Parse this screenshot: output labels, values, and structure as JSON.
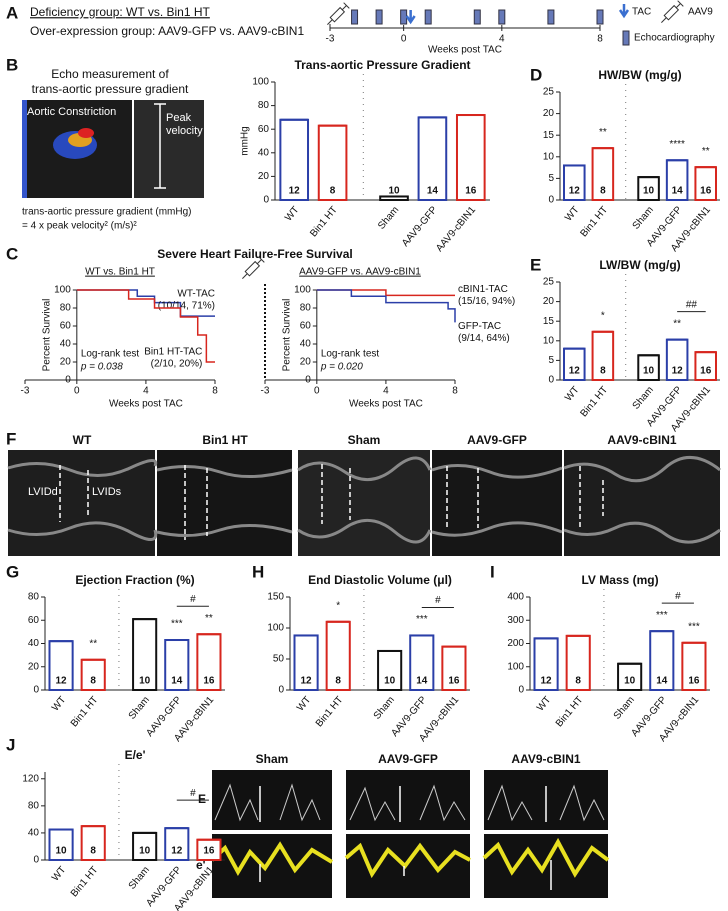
{
  "panels": {
    "a": {
      "letter": "A",
      "line1": "Deficiency group: WT vs. Bin1 HT",
      "line2": "Over-expression group: AAV9-GFP vs. AAV9-cBIN1"
    },
    "b": {
      "letter": "B",
      "echo_title1": "Echo measurement of",
      "echo_title2": "trans-aortic pressure gradient",
      "aortic": "Aortic Constriction",
      "peak1": "Peak",
      "peak2": "velocity",
      "formula1": "trans-aortic pressure gradient (mmHg)",
      "formula2": "= 4 x peak velocity² (m/s)²"
    },
    "c": {
      "letter": "C",
      "title": "Severe Heart Failure-Free Survival"
    },
    "d": {
      "letter": "D"
    },
    "e": {
      "letter": "E"
    },
    "f": {
      "letter": "F",
      "groups": [
        "WT",
        "Bin1 HT",
        "Sham",
        "AAV9-GFP",
        "AAV9-cBIN1"
      ],
      "lvidd": "LVIDd",
      "lvids": "LVIDs"
    },
    "g": {
      "letter": "G"
    },
    "h": {
      "letter": "H"
    },
    "i": {
      "letter": "I"
    },
    "j": {
      "letter": "J",
      "groups": [
        "Sham",
        "AAV9-GFP",
        "AAV9-cBIN1"
      ],
      "row1": "E",
      "row2": "e'"
    }
  },
  "chart_data": [
    {
      "type": "bar",
      "title": "Trans-aortic Pressure Gradient",
      "ylabel": "mmHg",
      "categories": [
        "WT",
        "Bin1 HT",
        "Sham",
        "AAV9-GFP",
        "AAV9-cBIN1"
      ],
      "values": [
        68,
        63,
        3,
        70,
        72
      ],
      "colors": [
        "#2b3fa8",
        "#d7261e",
        "#111111",
        "#2b3fa8",
        "#d7261e"
      ],
      "n": [
        12,
        8,
        10,
        14,
        16
      ],
      "significance": [
        null,
        null,
        null,
        null,
        null
      ],
      "ylim": [
        0,
        100
      ],
      "yticks": [
        0,
        20,
        40,
        60,
        80,
        100
      ]
    },
    {
      "type": "line",
      "step": true,
      "subtitle": "WT vs. Bin1 HT",
      "xlim": [
        -3,
        8
      ],
      "xticks": [
        -3,
        0,
        4,
        8
      ],
      "ylim": [
        0,
        100
      ],
      "yticks": [
        0,
        20,
        40,
        60,
        80,
        100
      ],
      "xlabel": "Weeks post TAC",
      "ylabel": "Percent Survival",
      "test": "Log-rank test",
      "p": "p = 0.038",
      "series": [
        {
          "name": "WT-TAC",
          "summary": "(10/14, 71%)",
          "color": "#2b3fa8",
          "x": [
            0,
            3.5,
            4.5,
            6,
            8
          ],
          "values": [
            100,
            93,
            86,
            71,
            71
          ]
        },
        {
          "name": "Bin1 HT-TAC",
          "summary": "(2/10, 20%)",
          "color": "#d7261e",
          "x": [
            0,
            3,
            4.5,
            6,
            7,
            7.5,
            8
          ],
          "values": [
            100,
            90,
            80,
            70,
            50,
            20,
            20
          ]
        }
      ]
    },
    {
      "type": "line",
      "step": true,
      "subtitle": "AAV9-GFP vs. AAV9-cBIN1",
      "injection_x": -3,
      "xlim": [
        -3,
        8
      ],
      "xticks": [
        -3,
        0,
        4,
        8
      ],
      "ylim": [
        0,
        100
      ],
      "yticks": [
        0,
        20,
        40,
        60,
        80,
        100
      ],
      "xlabel": "Weeks post TAC",
      "ylabel": "Percent Survival",
      "test": "Log-rank test",
      "p": "p = 0.020",
      "series": [
        {
          "name": "cBIN1-TAC",
          "summary": "(15/16, 94%)",
          "color": "#d7261e",
          "x": [
            0,
            4,
            8
          ],
          "values": [
            100,
            94,
            94
          ]
        },
        {
          "name": "GFP-TAC",
          "summary": "(9/14, 64%)",
          "color": "#2b3fa8",
          "x": [
            0,
            2,
            4,
            7.6,
            8
          ],
          "values": [
            100,
            93,
            86,
            79,
            64
          ]
        }
      ]
    },
    {
      "type": "bar",
      "title": "HW/BW (mg/g)",
      "categories": [
        "WT",
        "Bin1 HT",
        "Sham",
        "AAV9-GFP",
        "AAV9-cBIN1"
      ],
      "values": [
        8,
        12,
        5.3,
        9.2,
        7.6
      ],
      "colors": [
        "#2b3fa8",
        "#d7261e",
        "#111111",
        "#2b3fa8",
        "#d7261e"
      ],
      "n": [
        12,
        8,
        10,
        14,
        16
      ],
      "significance": [
        null,
        "**",
        null,
        "****",
        "**"
      ],
      "ylim": [
        0,
        25
      ],
      "yticks": [
        0,
        5,
        10,
        15,
        20,
        25
      ]
    },
    {
      "type": "bar",
      "title": "LW/BW (mg/g)",
      "categories": [
        "WT",
        "Bin1 HT",
        "Sham",
        "AAV9-GFP",
        "AAV9-cBIN1"
      ],
      "values": [
        8,
        12.3,
        6.3,
        10.3,
        7.1
      ],
      "colors": [
        "#2b3fa8",
        "#d7261e",
        "#111111",
        "#2b3fa8",
        "#d7261e"
      ],
      "n": [
        12,
        8,
        10,
        12,
        16
      ],
      "significance": [
        null,
        "*",
        null,
        "**",
        null
      ],
      "comparison": "##",
      "ylim": [
        0,
        25
      ],
      "yticks": [
        0,
        5,
        10,
        15,
        20,
        25
      ]
    },
    {
      "type": "bar",
      "title": "Ejection Fraction (%)",
      "categories": [
        "WT",
        "Bin1 HT",
        "Sham",
        "AAV9-GFP",
        "AAV9-cBIN1"
      ],
      "values": [
        42,
        26,
        61,
        43,
        48
      ],
      "colors": [
        "#2b3fa8",
        "#d7261e",
        "#111111",
        "#2b3fa8",
        "#d7261e"
      ],
      "n": [
        12,
        8,
        10,
        14,
        16
      ],
      "significance": [
        null,
        "**",
        null,
        "***",
        "**"
      ],
      "comparison": "#",
      "ylim": [
        0,
        80
      ],
      "yticks": [
        0,
        20,
        40,
        60,
        80
      ]
    },
    {
      "type": "bar",
      "title": "End Diastolic Volume (μl)",
      "categories": [
        "WT",
        "Bin1 HT",
        "Sham",
        "AAV9-GFP",
        "AAV9-cBIN1"
      ],
      "values": [
        88,
        110,
        63,
        88,
        70
      ],
      "colors": [
        "#2b3fa8",
        "#d7261e",
        "#111111",
        "#2b3fa8",
        "#d7261e"
      ],
      "n": [
        12,
        8,
        10,
        14,
        16
      ],
      "significance": [
        null,
        "*",
        null,
        "***",
        null
      ],
      "comparison": "#",
      "ylim": [
        0,
        150
      ],
      "yticks": [
        0,
        50,
        100,
        150
      ]
    },
    {
      "type": "bar",
      "title": "LV Mass (mg)",
      "categories": [
        "WT",
        "Bin1 HT",
        "Sham",
        "AAV9-GFP",
        "AAV9-cBIN1"
      ],
      "values": [
        222,
        233,
        113,
        253,
        203
      ],
      "colors": [
        "#2b3fa8",
        "#d7261e",
        "#111111",
        "#2b3fa8",
        "#d7261e"
      ],
      "n": [
        12,
        8,
        10,
        14,
        16
      ],
      "significance": [
        null,
        null,
        null,
        "***",
        "***"
      ],
      "comparison": "#",
      "ylim": [
        0,
        400
      ],
      "yticks": [
        0,
        100,
        200,
        300,
        400
      ]
    },
    {
      "type": "bar",
      "title": "E/e'",
      "categories": [
        "WT",
        "Bin1 HT",
        "Sham",
        "AAV9-GFP",
        "AAV9-cBIN1"
      ],
      "values": [
        45,
        50,
        40,
        47,
        30
      ],
      "colors": [
        "#2b3fa8",
        "#d7261e",
        "#111111",
        "#2b3fa8",
        "#d7261e"
      ],
      "n": [
        10,
        8,
        10,
        12,
        16
      ],
      "significance": [
        null,
        null,
        null,
        null,
        null
      ],
      "comparison": "#",
      "ylim": [
        0,
        130
      ],
      "yticks": [
        0,
        40,
        80,
        120
      ]
    },
    {
      "type": "timeline",
      "xlim": [
        -3,
        8
      ],
      "xticks": [
        -3,
        0,
        4,
        8
      ],
      "xlabel": "Weeks post TAC",
      "echo_weeks": [
        -2,
        -1,
        0,
        1,
        3,
        4,
        6,
        8
      ],
      "tac_week": 0,
      "aav9_week": -3,
      "legend": {
        "tac": "TAC",
        "aav9": "AAV9",
        "echo": "Echocardiography"
      }
    }
  ]
}
